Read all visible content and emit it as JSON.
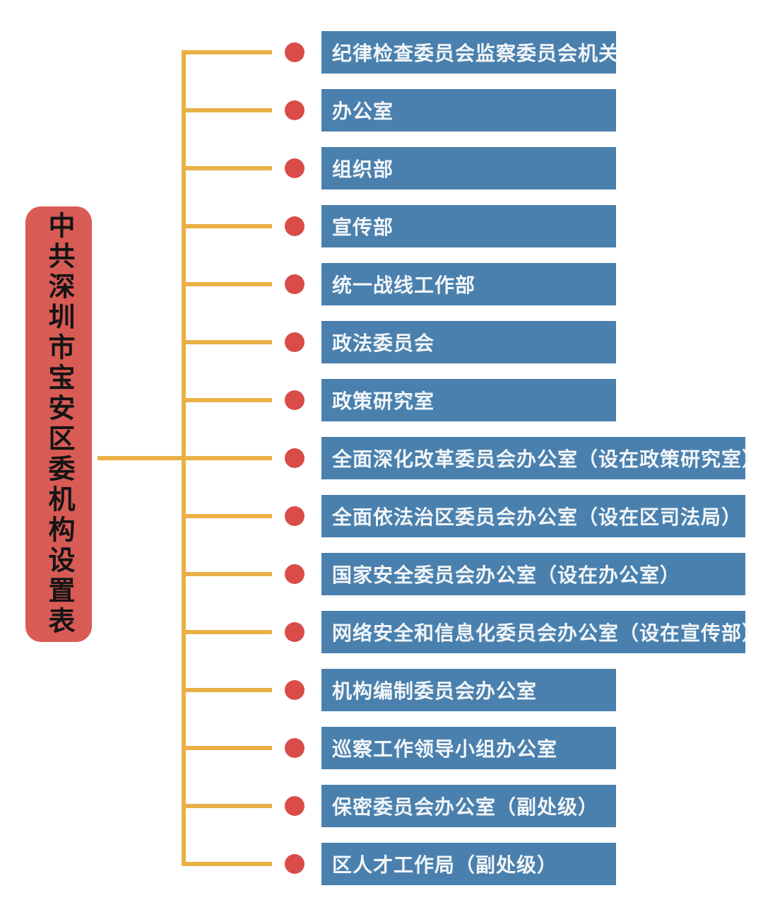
{
  "title": {
    "text": "中共深圳市宝安区委机构设置表"
  },
  "departments": [
    {
      "label": "纪律检查委员会监察委员会机关",
      "size": "short"
    },
    {
      "label": "办公室",
      "size": "short"
    },
    {
      "label": "组织部",
      "size": "short"
    },
    {
      "label": "宣传部",
      "size": "short"
    },
    {
      "label": "统一战线工作部",
      "size": "short"
    },
    {
      "label": "政法委员会",
      "size": "short"
    },
    {
      "label": "政策研究室",
      "size": "short"
    },
    {
      "label": "全面深化改革委员会办公室（设在政策研究室）",
      "size": "long"
    },
    {
      "label": "全面依法治区委员会办公室（设在区司法局）",
      "size": "long"
    },
    {
      "label": "国家安全委员会办公室（设在办公室）",
      "size": "long"
    },
    {
      "label": "网络安全和信息化委员会办公室（设在宣传部）",
      "size": "long"
    },
    {
      "label": "机构编制委员会办公室",
      "size": "short"
    },
    {
      "label": "巡察工作领导小组办公室",
      "size": "short"
    },
    {
      "label": "保密委员会办公室（副处级）",
      "size": "short"
    },
    {
      "label": "区人才工作局（副处级）",
      "size": "short"
    }
  ],
  "colors": {
    "title-red": "#D95B55",
    "box-blue": "#4A80AD",
    "dot-red": "#D94C48",
    "line-yellow": "#E9B045",
    "box-text": "#F2F6F9",
    "title-text": "#141414",
    "background": "#FFFFFF"
  }
}
